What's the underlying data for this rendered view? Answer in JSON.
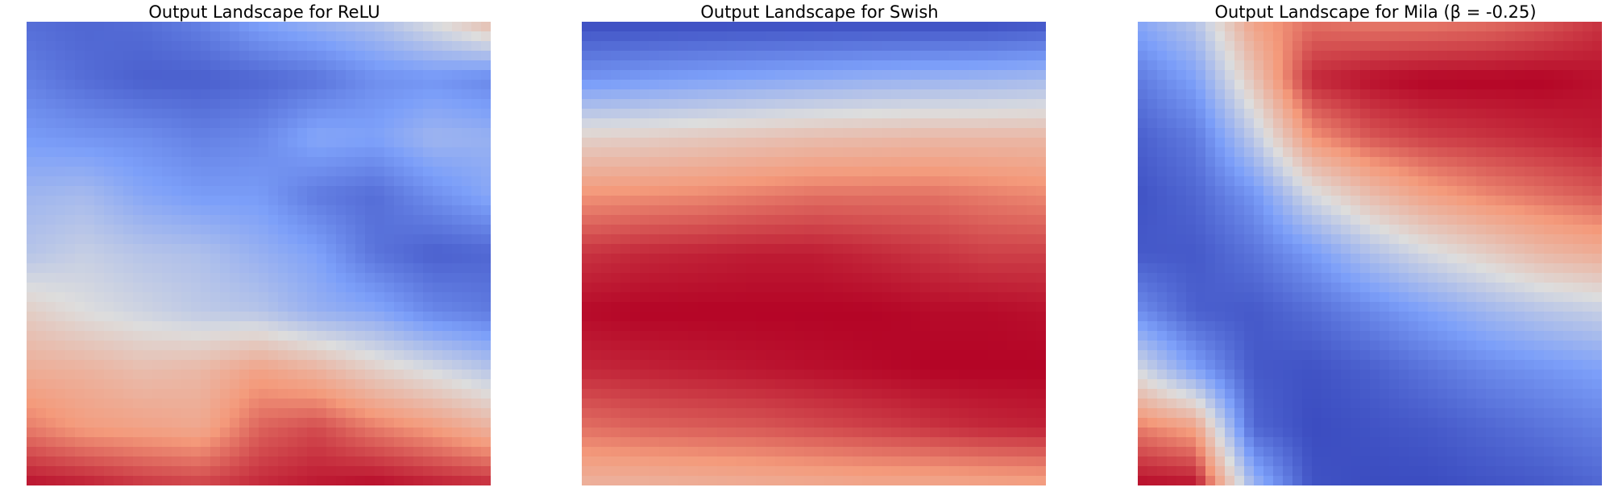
{
  "chart_data": [
    {
      "type": "heatmap",
      "title": "Output Landscape for ReLU",
      "colormap": "coolwarm",
      "axes_visible": false,
      "grid": false,
      "legend": "none",
      "value_range": [
        0,
        1
      ],
      "grid_values": [
        [
          0.1,
          0.08,
          0.1,
          0.16,
          0.26,
          0.32,
          0.38,
          0.5,
          0.64
        ],
        [
          0.16,
          0.1,
          0.06,
          0.06,
          0.08,
          0.12,
          0.2,
          0.22,
          0.18
        ],
        [
          0.24,
          0.22,
          0.2,
          0.16,
          0.18,
          0.28,
          0.26,
          0.34,
          0.32
        ],
        [
          0.34,
          0.36,
          0.28,
          0.24,
          0.24,
          0.14,
          0.1,
          0.2,
          0.28
        ],
        [
          0.4,
          0.44,
          0.4,
          0.38,
          0.32,
          0.26,
          0.12,
          0.06,
          0.08
        ],
        [
          0.56,
          0.5,
          0.46,
          0.42,
          0.4,
          0.32,
          0.28,
          0.18,
          0.14
        ],
        [
          0.68,
          0.66,
          0.62,
          0.64,
          0.72,
          0.66,
          0.56,
          0.48,
          0.4
        ],
        [
          0.8,
          0.74,
          0.72,
          0.7,
          0.84,
          0.88,
          0.8,
          0.74,
          0.66
        ],
        [
          0.98,
          0.96,
          0.92,
          0.9,
          0.94,
          0.97,
          0.99,
          0.96,
          0.94
        ]
      ]
    },
    {
      "type": "heatmap",
      "title": "Output Landscape for Swish",
      "colormap": "coolwarm",
      "axes_visible": false,
      "grid": false,
      "legend": "none",
      "value_range": [
        0,
        1
      ],
      "grid_values": [
        [
          0.0,
          0.0,
          0.0,
          0.0,
          0.0,
          0.0,
          0.0,
          0.0,
          0.02
        ],
        [
          0.22,
          0.24,
          0.26,
          0.28,
          0.3,
          0.32,
          0.33,
          0.34,
          0.36
        ],
        [
          0.55,
          0.56,
          0.58,
          0.6,
          0.62,
          0.63,
          0.64,
          0.64,
          0.64
        ],
        [
          0.76,
          0.77,
          0.78,
          0.8,
          0.82,
          0.82,
          0.82,
          0.8,
          0.78
        ],
        [
          0.92,
          0.94,
          0.95,
          0.96,
          0.96,
          0.94,
          0.92,
          0.9,
          0.9
        ],
        [
          0.99,
          1.0,
          1.0,
          1.0,
          1.0,
          1.0,
          0.99,
          0.99,
          0.98
        ],
        [
          0.94,
          0.95,
          0.96,
          0.97,
          0.98,
          0.99,
          1.0,
          1.0,
          1.0
        ],
        [
          0.82,
          0.84,
          0.85,
          0.86,
          0.88,
          0.9,
          0.92,
          0.94,
          0.95
        ],
        [
          0.66,
          0.66,
          0.67,
          0.68,
          0.69,
          0.7,
          0.7,
          0.71,
          0.72
        ]
      ]
    },
    {
      "type": "heatmap",
      "title": "Output Landscape for Mila (β = -0.25)",
      "colormap": "coolwarm",
      "axes_visible": false,
      "grid": false,
      "legend": "none",
      "value_range": [
        0,
        1
      ],
      "grid_values": [
        [
          0.28,
          0.4,
          0.72,
          0.82,
          0.8,
          0.8,
          0.82,
          0.86,
          0.92
        ],
        [
          0.14,
          0.26,
          0.6,
          0.94,
          0.98,
          1.0,
          1.0,
          1.0,
          0.98
        ],
        [
          0.06,
          0.14,
          0.42,
          0.76,
          0.86,
          0.9,
          0.92,
          0.94,
          0.96
        ],
        [
          0.02,
          0.08,
          0.22,
          0.48,
          0.62,
          0.72,
          0.78,
          0.82,
          0.86
        ],
        [
          0.04,
          0.04,
          0.12,
          0.24,
          0.38,
          0.48,
          0.56,
          0.64,
          0.68
        ],
        [
          0.2,
          0.06,
          0.04,
          0.1,
          0.18,
          0.26,
          0.34,
          0.4,
          0.44
        ],
        [
          0.48,
          0.26,
          0.04,
          0.02,
          0.06,
          0.12,
          0.18,
          0.22,
          0.26
        ],
        [
          0.8,
          0.72,
          0.08,
          0.0,
          0.02,
          0.04,
          0.08,
          0.12,
          0.16
        ],
        [
          0.99,
          0.98,
          0.34,
          0.02,
          0.0,
          0.0,
          0.02,
          0.04,
          0.08
        ]
      ]
    }
  ]
}
